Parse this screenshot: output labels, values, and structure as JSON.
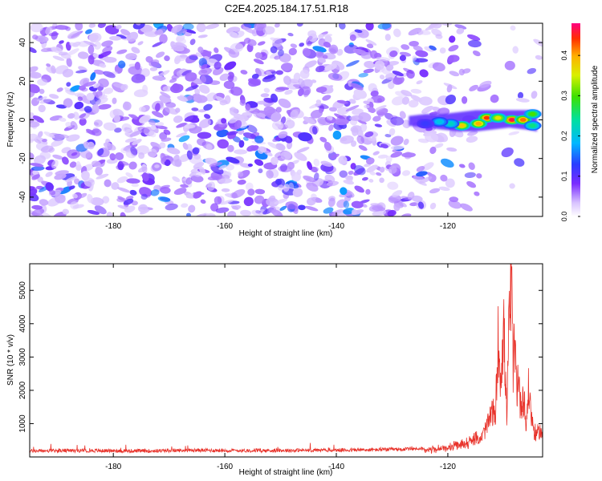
{
  "title": "C2E4.2025.184.17.51.R18",
  "chart_data": [
    {
      "type": "heatmap",
      "xlabel": "Height of straight line (km)",
      "ylabel": "Frequency (Hz)",
      "xlim": [
        -195,
        -103
      ],
      "ylim": [
        -50,
        50
      ],
      "x_ticks": [
        -180,
        -160,
        -140,
        -120
      ],
      "y_ticks": [
        -40,
        -20,
        0,
        20,
        40
      ],
      "colorbar": {
        "label": "Normalized spectral amplitude",
        "range": [
          0,
          0.48
        ],
        "ticks": [
          0.0,
          0.1,
          0.2,
          0.3,
          0.4
        ],
        "tick_labels": [
          "0.0",
          "0.1",
          "0.2",
          "0.3",
          "0.4"
        ]
      },
      "background_amplitude": 0.06,
      "signal": {
        "x_range": [
          -127,
          -104
        ],
        "frequency_range": [
          -7,
          7
        ],
        "peak_amplitude": 0.46,
        "peaks": [
          {
            "x": -108.5,
            "f": 0,
            "amplitude": 0.46
          },
          {
            "x": -106.5,
            "f": 0,
            "amplitude": 0.42
          },
          {
            "x": -113,
            "f": 1,
            "amplitude": 0.44
          },
          {
            "x": -114.5,
            "f": -2,
            "amplitude": 0.4
          },
          {
            "x": -117.5,
            "f": -3,
            "amplitude": 0.38
          },
          {
            "x": -111,
            "f": 1,
            "amplitude": 0.36
          },
          {
            "x": -104.8,
            "f": 3,
            "amplitude": 0.3
          },
          {
            "x": -104.8,
            "f": -3,
            "amplitude": 0.25
          },
          {
            "x": -119.5,
            "f": -2,
            "amplitude": 0.22
          },
          {
            "x": -121.5,
            "f": -1,
            "amplitude": 0.2
          },
          {
            "x": -124,
            "f": -2,
            "amplitude": 0.12
          }
        ]
      }
    },
    {
      "type": "line",
      "xlabel": "Height of straight line (km)",
      "ylabel": "SNR (10 * v/v)",
      "xlim": [
        -195,
        -103
      ],
      "ylim": [
        0,
        5800
      ],
      "x_ticks": [
        -180,
        -160,
        -140,
        -120
      ],
      "y_ticks": [
        1000,
        2000,
        3000,
        4000,
        5000
      ],
      "color": "#e8322a",
      "series": [
        {
          "x": [
            -195,
            -185,
            -175,
            -165,
            -155,
            -145,
            -135,
            -128,
            -122,
            -120,
            -118,
            -116,
            -115,
            -114,
            -113,
            -112,
            -111.5,
            -111,
            -110.5,
            -110,
            -109.8,
            -109.4,
            -109,
            -108.7,
            -108.5,
            -108.3,
            -108,
            -107.6,
            -107.3,
            -107,
            -106.6,
            -106.3,
            -106,
            -105.5,
            -105,
            -104.5,
            -104,
            -103.5,
            -103
          ],
          "y": [
            180,
            190,
            180,
            200,
            190,
            200,
            210,
            230,
            280,
            350,
            420,
            560,
            650,
            700,
            1100,
            1700,
            1300,
            4200,
            3000,
            4700,
            3600,
            1400,
            5100,
            5750,
            5700,
            3300,
            3900,
            2500,
            3200,
            1800,
            2200,
            2200,
            1000,
            2500,
            1500,
            900,
            800,
            1000,
            700
          ]
        }
      ]
    }
  ]
}
